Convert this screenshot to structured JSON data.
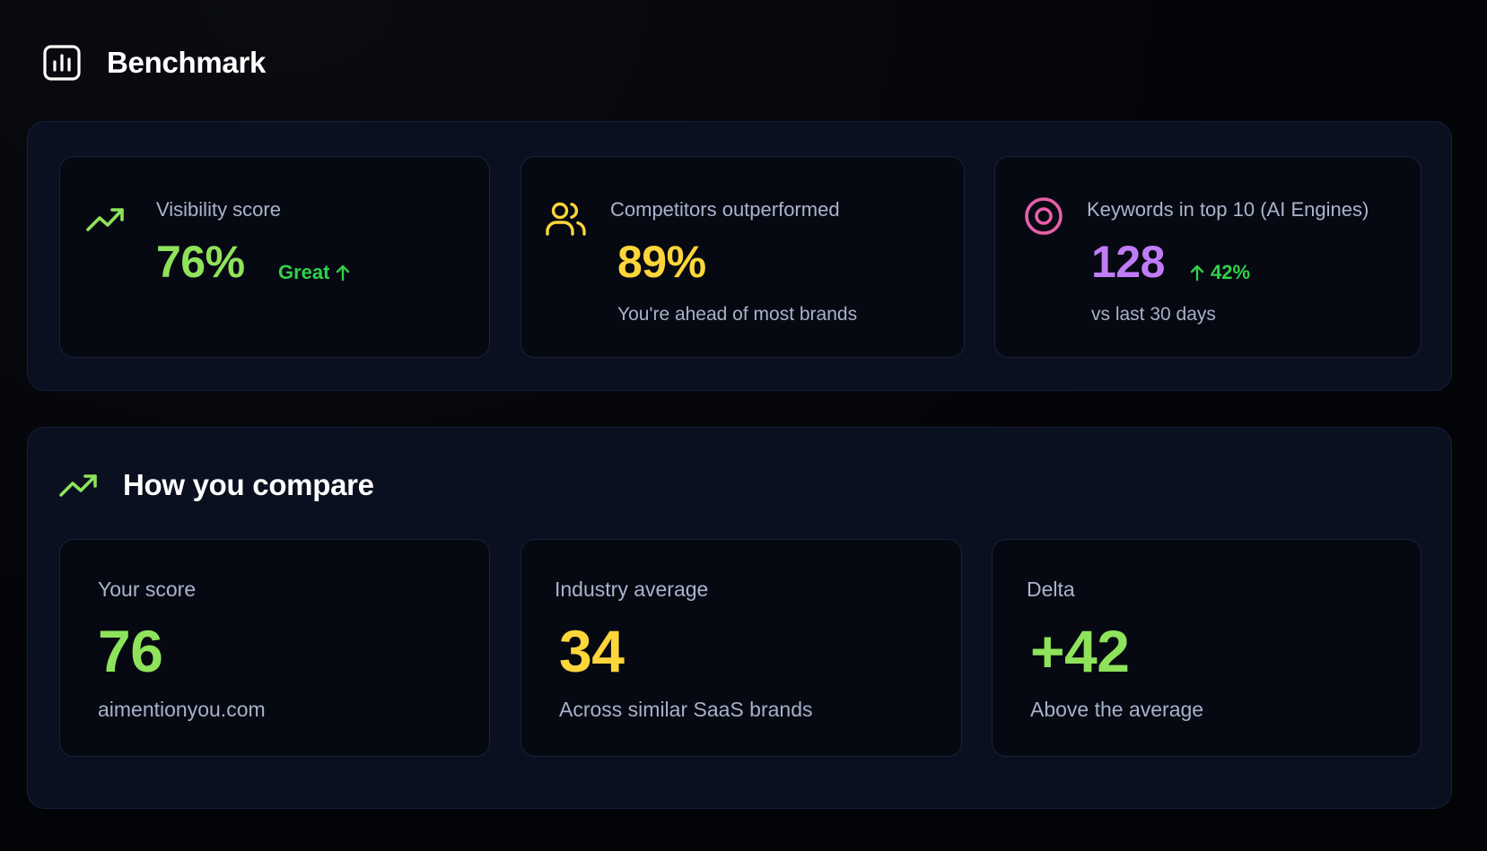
{
  "header": {
    "title": "Benchmark",
    "icon": "bar-chart-icon"
  },
  "metrics": [
    {
      "label": "Visibility score",
      "value": "76%",
      "badge": "Great",
      "badge_icon": "arrow-up-icon",
      "icon": "trending-up-icon",
      "color": "#8ee35a"
    },
    {
      "label": "Competitors outperformed",
      "value": "89%",
      "sub": "You're ahead of most brands",
      "icon": "users-icon",
      "color": "#fcd63a"
    },
    {
      "label": "Keywords in top 10 (AI Engines)",
      "value": "128",
      "badge": "42%",
      "badge_icon": "arrow-up-icon",
      "sub": "vs last 30 days",
      "icon": "target-icon",
      "color": "#c07cf7"
    }
  ],
  "compare": {
    "title": "How you compare",
    "icon": "trending-up-icon",
    "cards": [
      {
        "label": "Your score",
        "value": "76",
        "sub": "aimentionyou.com",
        "color": "#8ee35a"
      },
      {
        "label": "Industry average",
        "value": "34",
        "sub": "Across similar SaaS brands",
        "color": "#fcd63a"
      },
      {
        "label": "Delta",
        "value": "+42",
        "sub": "Above the average",
        "color": "#8ee35a"
      }
    ]
  },
  "colors": {
    "badge_green": "#33d04a",
    "panel_bg": "#0a1020",
    "card_bg": "#060912"
  }
}
